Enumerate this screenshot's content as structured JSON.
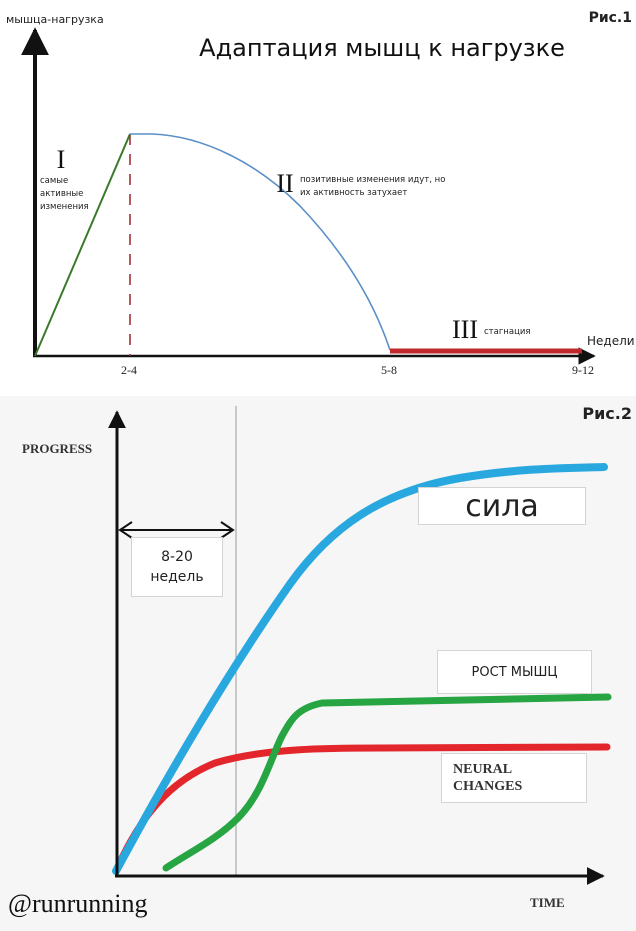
{
  "chart_data": [
    {
      "type": "line",
      "figure_label": "Рис.1",
      "title": "Адаптация мышц к нагрузке",
      "ylabel": "мышца-нагрузка",
      "xlabel": "Недели",
      "x_ticks": [
        "2-4",
        "5-8",
        "9-12"
      ],
      "phases": [
        {
          "numeral": "I",
          "label": "самые активные изменения",
          "label_lines": [
            "самые",
            "активные",
            "изменения"
          ],
          "color": "#3b7a2e"
        },
        {
          "numeral": "II",
          "label": "позитивные изменения идут, но их активность затухает",
          "label_lines": [
            "позитивные изменения идут, но",
            "их активность затухает"
          ],
          "color": "#5a8fc7"
        },
        {
          "numeral": "III",
          "label": "стагнация",
          "label_lines": [
            "стагнация"
          ],
          "color": "#c0282b"
        }
      ],
      "divider_color": "#a03030"
    },
    {
      "type": "line",
      "figure_label": "Рис.2",
      "ylabel": "PROGRESS",
      "xlabel": "TIME",
      "interval_label": "8-20 недель",
      "interval_label_lines": [
        "8-20",
        "недель"
      ],
      "series": [
        {
          "name": "сила",
          "color": "#29a8df"
        },
        {
          "name": "РОСТ МЫШЦ",
          "color": "#27a543"
        },
        {
          "name": "NEURAL CHANGES",
          "name_lines": [
            "NEURAL",
            "CHANGES"
          ],
          "color": "#e3262b"
        }
      ]
    }
  ],
  "watermark": "@runrunning"
}
